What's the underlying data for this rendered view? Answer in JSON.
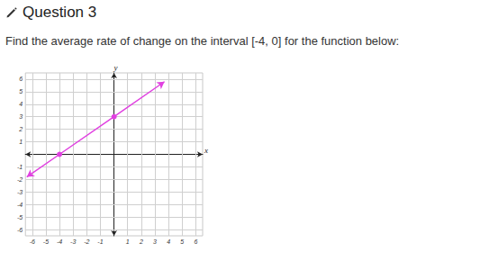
{
  "header": {
    "title": "Question 3"
  },
  "question": "Find the average rate of change on the interval [-4, 0] for the function below:",
  "chart_data": {
    "type": "line",
    "x": [
      -6.4,
      -4,
      0,
      3.7
    ],
    "values": [
      -1.8,
      0,
      3,
      5.8
    ],
    "color": "#e040e0",
    "marker": "circle",
    "x_label": "x",
    "y_label": "y",
    "xlim": [
      -6.5,
      6.5
    ],
    "ylim": [
      -6.5,
      6.5
    ],
    "xticks": [
      -6,
      -5,
      -4,
      -3,
      -2,
      -1,
      1,
      2,
      3,
      4,
      5,
      6
    ],
    "yticks": [
      -6,
      -5,
      -4,
      -3,
      -2,
      -1,
      1,
      2,
      3,
      4,
      5,
      6
    ],
    "grid": true
  }
}
